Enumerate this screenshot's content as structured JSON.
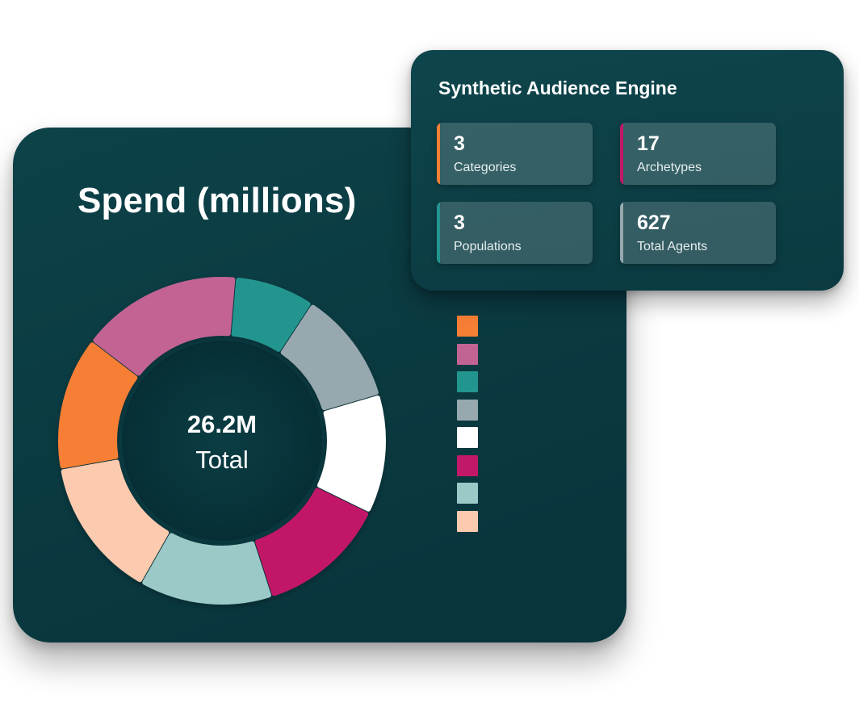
{
  "spend_card": {
    "title": "Spend (millions)",
    "total_value": "26.2M",
    "total_label": "Total"
  },
  "chart_data": {
    "type": "pie",
    "title": "Spend (millions)",
    "center_value": "26.2M",
    "center_label": "Total",
    "slices": [
      {
        "color": "#f77f35",
        "fraction": 0.1317
      },
      {
        "color": "#c26493",
        "fraction": 0.1594
      },
      {
        "color": "#23958f",
        "fraction": 0.0789
      },
      {
        "color": "#97a9ae",
        "fraction": 0.1122
      },
      {
        "color": "#ffffff",
        "fraction": 0.1178
      },
      {
        "color": "#c21869",
        "fraction": 0.1281
      },
      {
        "color": "#9bc9c7",
        "fraction": 0.1317
      },
      {
        "color": "#fccaae",
        "fraction": 0.14
      }
    ],
    "legend": {
      "placement": "right",
      "colors": [
        "#f77f35",
        "#c26493",
        "#23958f",
        "#97a9ae",
        "#ffffff",
        "#c21869",
        "#9bc9c7",
        "#fccaae"
      ]
    }
  },
  "audience_card": {
    "title": "Synthetic Audience Engine",
    "stats": [
      {
        "value": "3",
        "label": "Categories",
        "accent": "#f77f35"
      },
      {
        "value": "17",
        "label": "Archetypes",
        "accent": "#c21869"
      },
      {
        "value": "3",
        "label": "Populations",
        "accent": "#23958f"
      },
      {
        "value": "627",
        "label": "Total Agents",
        "accent": "#97a9ae"
      }
    ]
  },
  "colors": {
    "card_background": "#0a3940",
    "text": "#ffffff"
  }
}
